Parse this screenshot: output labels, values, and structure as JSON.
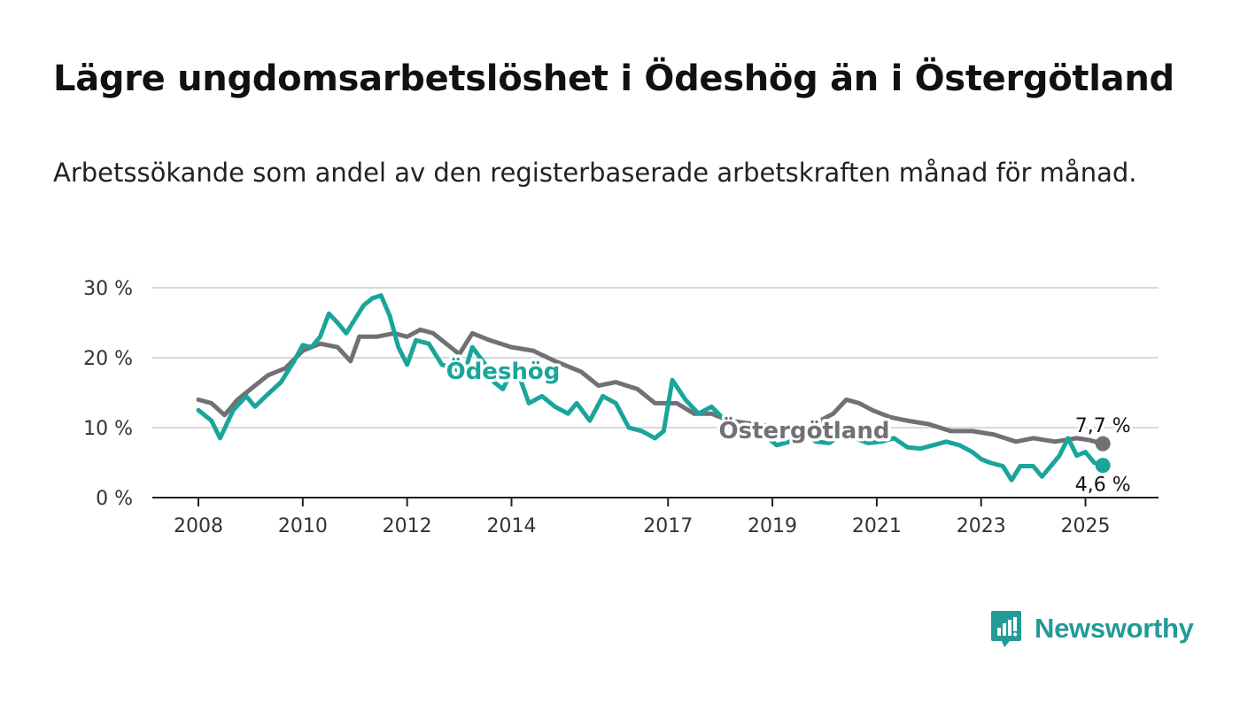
{
  "title": "Lägre ungdomsarbetslöshet i Ödeshög än i Östergötland",
  "subtitle": "Arbetssökande som andel av den registerbaserade arbetskraften månad för månad.",
  "brand": {
    "name": "Newsworthy",
    "icon": "newsworthy-logo-icon",
    "color": "#239a98"
  },
  "chart_data": {
    "type": "line",
    "y_ticks": [
      "0 %",
      "10 %",
      "20 %",
      "30 %"
    ],
    "y_tick_values": [
      0,
      10,
      20,
      30
    ],
    "ylim": [
      0,
      30
    ],
    "xlim": [
      "2008-01",
      "2025-07"
    ],
    "x_ticks": [
      "2008",
      "2010",
      "2012",
      "2014",
      "2017",
      "2019",
      "2021",
      "2023",
      "2025"
    ],
    "grid": true,
    "series": [
      {
        "name": "Ödeshög",
        "color": "#1aa59b",
        "end_label": "4,6 %",
        "points": [
          [
            "2008-01",
            12.5
          ],
          [
            "2008-04",
            11.0
          ],
          [
            "2008-06",
            8.5
          ],
          [
            "2008-09",
            12.5
          ],
          [
            "2008-12",
            14.5
          ],
          [
            "2009-02",
            13.0
          ],
          [
            "2009-05",
            14.8
          ],
          [
            "2009-08",
            16.5
          ],
          [
            "2009-11",
            19.5
          ],
          [
            "2010-01",
            21.8
          ],
          [
            "2010-03",
            21.5
          ],
          [
            "2010-05",
            23.0
          ],
          [
            "2010-07",
            26.3
          ],
          [
            "2010-09",
            25.0
          ],
          [
            "2010-11",
            23.5
          ],
          [
            "2011-01",
            25.5
          ],
          [
            "2011-03",
            27.5
          ],
          [
            "2011-05",
            28.5
          ],
          [
            "2011-07",
            28.9
          ],
          [
            "2011-09",
            26.0
          ],
          [
            "2011-11",
            21.5
          ],
          [
            "2012-01",
            19.0
          ],
          [
            "2012-03",
            22.5
          ],
          [
            "2012-06",
            22.0
          ],
          [
            "2012-09",
            19.0
          ],
          [
            "2012-12",
            18.5
          ],
          [
            "2013-02",
            17.5
          ],
          [
            "2013-04",
            21.5
          ],
          [
            "2013-07",
            19.0
          ],
          [
            "2013-09",
            16.5
          ],
          [
            "2013-11",
            15.5
          ],
          [
            "2014-01",
            18.0
          ],
          [
            "2014-03",
            17.0
          ],
          [
            "2014-05",
            13.5
          ],
          [
            "2014-08",
            14.5
          ],
          [
            "2014-11",
            13.0
          ],
          [
            "2015-02",
            12.0
          ],
          [
            "2015-04",
            13.5
          ],
          [
            "2015-07",
            11.0
          ],
          [
            "2015-10",
            14.5
          ],
          [
            "2016-01",
            13.5
          ],
          [
            "2016-04",
            10.0
          ],
          [
            "2016-07",
            9.5
          ],
          [
            "2016-10",
            8.5
          ],
          [
            "2016-12",
            9.5
          ],
          [
            "2017-02",
            16.8
          ],
          [
            "2017-05",
            14.0
          ],
          [
            "2017-08",
            12.0
          ],
          [
            "2017-11",
            13.0
          ],
          [
            "2018-03",
            10.5
          ],
          [
            "2018-07",
            9.5
          ],
          [
            "2018-11",
            9.0
          ],
          [
            "2019-02",
            7.5
          ],
          [
            "2019-05",
            8.0
          ],
          [
            "2019-08",
            9.5
          ],
          [
            "2019-11",
            8.0
          ],
          [
            "2020-02",
            7.8
          ],
          [
            "2020-05",
            9.0
          ],
          [
            "2020-08",
            8.5
          ],
          [
            "2020-11",
            7.8
          ],
          [
            "2021-02",
            8.0
          ],
          [
            "2021-05",
            8.5
          ],
          [
            "2021-08",
            7.2
          ],
          [
            "2021-11",
            7.0
          ],
          [
            "2022-02",
            7.5
          ],
          [
            "2022-05",
            8.0
          ],
          [
            "2022-08",
            7.5
          ],
          [
            "2022-11",
            6.5
          ],
          [
            "2023-01",
            5.5
          ],
          [
            "2023-03",
            5.0
          ],
          [
            "2023-06",
            4.5
          ],
          [
            "2023-08",
            2.5
          ],
          [
            "2023-10",
            4.5
          ],
          [
            "2024-01",
            4.5
          ],
          [
            "2024-03",
            3.0
          ],
          [
            "2024-05",
            4.5
          ],
          [
            "2024-07",
            6.0
          ],
          [
            "2024-09",
            8.5
          ],
          [
            "2024-11",
            6.0
          ],
          [
            "2025-01",
            6.5
          ],
          [
            "2025-03",
            5.0
          ],
          [
            "2025-05",
            4.6
          ]
        ]
      },
      {
        "name": "Östergötland",
        "color": "#717075",
        "end_label": "7,7 %",
        "points": [
          [
            "2008-01",
            14.0
          ],
          [
            "2008-04",
            13.5
          ],
          [
            "2008-07",
            11.8
          ],
          [
            "2008-10",
            14.0
          ],
          [
            "2009-01",
            15.5
          ],
          [
            "2009-05",
            17.5
          ],
          [
            "2009-09",
            18.5
          ],
          [
            "2010-01",
            21.0
          ],
          [
            "2010-05",
            22.0
          ],
          [
            "2010-09",
            21.5
          ],
          [
            "2010-12",
            19.5
          ],
          [
            "2011-02",
            23.0
          ],
          [
            "2011-06",
            23.0
          ],
          [
            "2011-10",
            23.5
          ],
          [
            "2012-01",
            23.0
          ],
          [
            "2012-04",
            24.0
          ],
          [
            "2012-07",
            23.5
          ],
          [
            "2012-10",
            22.0
          ],
          [
            "2013-01",
            20.5
          ],
          [
            "2013-04",
            23.5
          ],
          [
            "2013-08",
            22.5
          ],
          [
            "2014-01",
            21.5
          ],
          [
            "2014-06",
            21.0
          ],
          [
            "2014-11",
            19.5
          ],
          [
            "2015-05",
            18.0
          ],
          [
            "2015-09",
            16.0
          ],
          [
            "2016-01",
            16.5
          ],
          [
            "2016-06",
            15.5
          ],
          [
            "2016-10",
            13.5
          ],
          [
            "2017-03",
            13.5
          ],
          [
            "2017-07",
            12.0
          ],
          [
            "2017-11",
            12.0
          ],
          [
            "2018-03",
            11.0
          ],
          [
            "2018-09",
            10.5
          ],
          [
            "2019-03",
            10.0
          ],
          [
            "2019-09",
            10.0
          ],
          [
            "2020-03",
            12.0
          ],
          [
            "2020-06",
            14.0
          ],
          [
            "2020-09",
            13.5
          ],
          [
            "2020-12",
            12.5
          ],
          [
            "2021-04",
            11.5
          ],
          [
            "2021-08",
            11.0
          ],
          [
            "2022-01",
            10.5
          ],
          [
            "2022-06",
            9.5
          ],
          [
            "2022-11",
            9.5
          ],
          [
            "2023-04",
            9.0
          ],
          [
            "2023-09",
            8.0
          ],
          [
            "2024-01",
            8.5
          ],
          [
            "2024-06",
            8.0
          ],
          [
            "2024-11",
            8.5
          ],
          [
            "2025-02",
            8.2
          ],
          [
            "2025-05",
            7.7
          ]
        ]
      }
    ]
  }
}
